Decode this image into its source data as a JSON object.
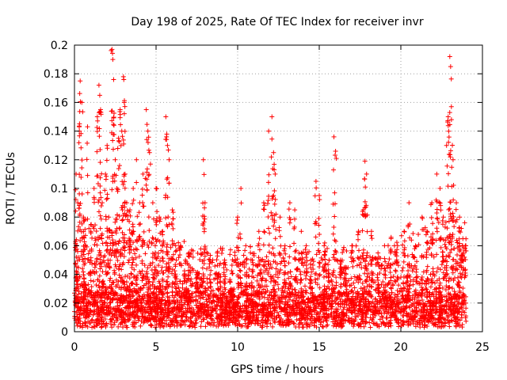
{
  "chart_data": {
    "type": "scatter",
    "title": "Day 198 of 2025, Rate Of TEC Index for receiver invr",
    "xlabel": "GPS time / hours",
    "ylabel": "ROTI / TECUs",
    "xlim": [
      0,
      25
    ],
    "ylim": [
      0,
      0.2
    ],
    "xticks": [
      0,
      5,
      10,
      15,
      20,
      25
    ],
    "xtick_labels": [
      "0",
      "5",
      "10",
      "15",
      "20",
      "25"
    ],
    "yticks": [
      0,
      0.02,
      0.04,
      0.06,
      0.08,
      0.1,
      0.12,
      0.14,
      0.16,
      0.18,
      0.2
    ],
    "ytick_labels": [
      "0",
      "0.02",
      "0.04",
      "0.06",
      "0.08",
      "0.1",
      "0.12",
      "0.14",
      "0.16",
      "0.18",
      "0.2"
    ],
    "grid": true,
    "marker": "+",
    "series": [
      {
        "name": "ROTI",
        "color": "#ff0000",
        "x": [
          0.1,
          0.15,
          0.2,
          0.3,
          0.35,
          0.45,
          0.55,
          0.65,
          0.8,
          1.0,
          1.2,
          1.4,
          1.5,
          1.55,
          1.6,
          1.7,
          1.9,
          2.0,
          2.1,
          2.3,
          2.35,
          2.4,
          2.5,
          2.6,
          2.7,
          2.8,
          2.9,
          3.0,
          3.05,
          3.1,
          3.2,
          3.4,
          3.6,
          3.8,
          4.0,
          4.2,
          4.4,
          4.5,
          4.6,
          4.8,
          5.0,
          5.2,
          5.4,
          5.6,
          5.7,
          5.8,
          6.0,
          6.2,
          6.5,
          6.8,
          7.0,
          7.5,
          7.9,
          8.0,
          8.3,
          8.8,
          9.2,
          9.6,
          10.0,
          10.2,
          10.5,
          10.9,
          11.3,
          11.6,
          11.9,
          12.1,
          12.2,
          12.3,
          12.6,
          12.9,
          13.2,
          13.5,
          13.9,
          14.2,
          14.5,
          14.8,
          15.0,
          15.3,
          15.6,
          15.9,
          16.0,
          16.3,
          16.6,
          17.0,
          17.4,
          17.7,
          17.8,
          17.9,
          18.2,
          18.6,
          19.0,
          19.4,
          19.8,
          20.2,
          20.5,
          20.9,
          21.3,
          21.6,
          21.9,
          22.2,
          22.4,
          22.6,
          22.8,
          22.9,
          23.0,
          23.05,
          23.1,
          23.2,
          23.4,
          23.6,
          23.8,
          23.95
        ],
        "y": [
          0.11,
          0.06,
          0.09,
          0.14,
          0.175,
          0.16,
          0.08,
          0.06,
          0.143,
          0.07,
          0.1,
          0.15,
          0.172,
          0.165,
          0.155,
          0.09,
          0.11,
          0.13,
          0.08,
          0.197,
          0.19,
          0.176,
          0.12,
          0.1,
          0.135,
          0.155,
          0.14,
          0.178,
          0.16,
          0.11,
          0.09,
          0.085,
          0.1,
          0.12,
          0.09,
          0.11,
          0.155,
          0.14,
          0.125,
          0.09,
          0.1,
          0.08,
          0.07,
          0.15,
          0.13,
          0.12,
          0.085,
          0.06,
          0.06,
          0.05,
          0.055,
          0.04,
          0.12,
          0.09,
          0.05,
          0.04,
          0.05,
          0.03,
          0.08,
          0.1,
          0.06,
          0.05,
          0.07,
          0.09,
          0.14,
          0.15,
          0.125,
          0.11,
          0.08,
          0.06,
          0.09,
          0.085,
          0.07,
          0.06,
          0.05,
          0.105,
          0.095,
          0.06,
          0.05,
          0.136,
          0.126,
          0.05,
          0.045,
          0.06,
          0.07,
          0.085,
          0.119,
          0.11,
          0.07,
          0.055,
          0.06,
          0.065,
          0.06,
          0.07,
          0.09,
          0.06,
          0.08,
          0.07,
          0.09,
          0.11,
          0.1,
          0.08,
          0.13,
          0.15,
          0.192,
          0.185,
          0.148,
          0.12,
          0.09,
          0.08,
          0.065,
          0.06
        ]
      }
    ],
    "noise_floor": {
      "min": 0.003,
      "typical": 0.015,
      "dense_max": 0.08
    }
  }
}
